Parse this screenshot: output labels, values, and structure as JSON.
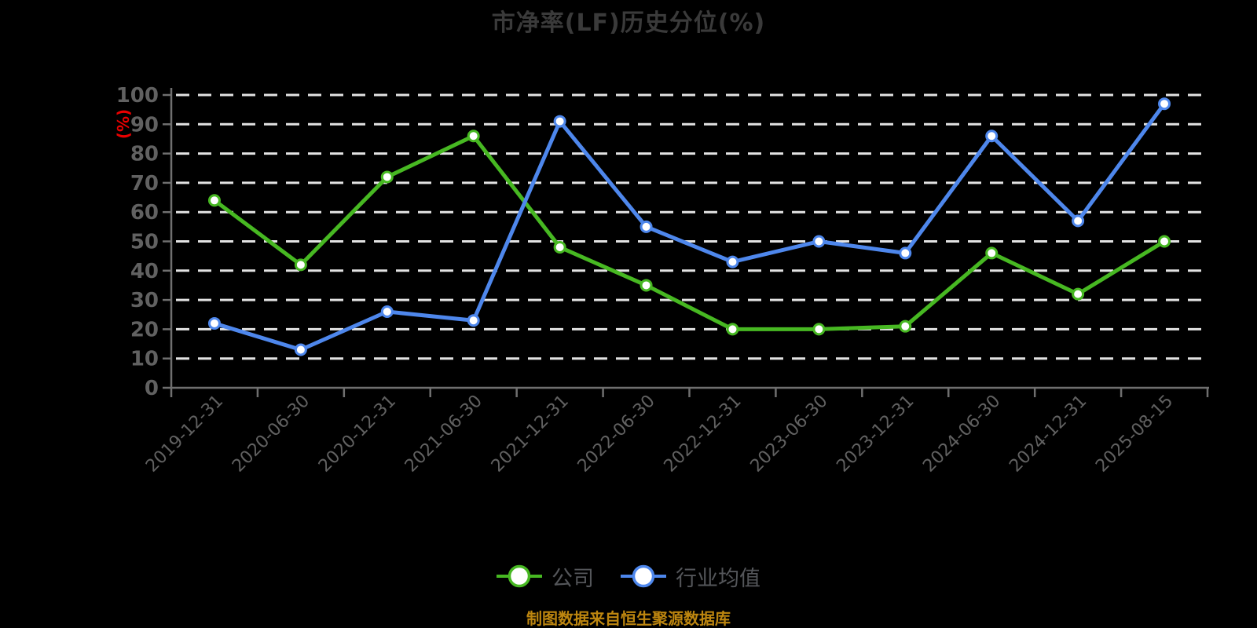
{
  "title": {
    "text": "市净率(LF)历史分位(%)"
  },
  "caption": {
    "text": "制图数据来自恒生聚源数据库"
  },
  "colors": {
    "background": "#000000",
    "title_text": "#3a3a3a",
    "axis_line": "#6f6f6f",
    "axis_label": "#616161",
    "gridline": "#e3e3e3",
    "unit_label": "#e90000",
    "legend_text": "#54565a",
    "caption_text": "#bd860f",
    "marker_fill": "#ffffff",
    "company": "#47b822",
    "industry": "#4e87ec"
  },
  "chart_data": {
    "type": "line",
    "title": "市净率(LF)历史分位(%)",
    "ylabel": "(%)",
    "xlabel": "",
    "ylim": [
      0,
      100
    ],
    "y_ticks": [
      0,
      10,
      20,
      30,
      40,
      50,
      60,
      70,
      80,
      90,
      100
    ],
    "grid": "horizontal-dashed-white",
    "legend_position": "bottom",
    "categories": [
      "2019-12-31",
      "2020-06-30",
      "2020-12-31",
      "2021-06-30",
      "2021-12-31",
      "2022-06-30",
      "2022-12-31",
      "2023-06-30",
      "2023-12-31",
      "2024-06-30",
      "2024-12-31",
      "2025-08-15"
    ],
    "series": [
      {
        "key": "company",
        "name": "公司",
        "values": [
          64,
          42,
          72,
          86,
          48,
          35,
          20,
          20,
          21,
          46,
          32,
          50
        ]
      },
      {
        "key": "industry",
        "name": "行业均值",
        "values": [
          22,
          13,
          26,
          23,
          91,
          55,
          43,
          50,
          46,
          86,
          57,
          97
        ]
      }
    ]
  }
}
